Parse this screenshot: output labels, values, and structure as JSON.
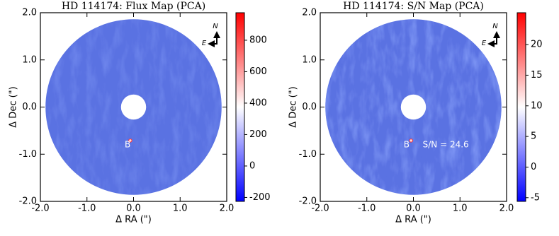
{
  "chart_data": [
    {
      "type": "image",
      "title": "HD 114174: Flux Map (PCA)",
      "xlabel": "Δ RA (\")",
      "ylabel": "Δ Dec (\")",
      "xlim": [
        -2,
        2
      ],
      "ylim": [
        -2,
        2
      ],
      "xticks": [
        {
          "value": -2,
          "label": "-2.0"
        },
        {
          "value": -1,
          "label": "-1.0"
        },
        {
          "value": 0,
          "label": "0.0"
        },
        {
          "value": 1,
          "label": "1.0"
        },
        {
          "value": 2,
          "label": "2.0"
        }
      ],
      "yticks": [
        {
          "value": -2,
          "label": "-2.0"
        },
        {
          "value": -1,
          "label": "-1.0"
        },
        {
          "value": 0,
          "label": "0.0"
        },
        {
          "value": 1,
          "label": "1.0"
        },
        {
          "value": 2,
          "label": "2.0"
        }
      ],
      "colorbar": {
        "clim": [
          -225,
          975
        ],
        "ticks": [
          -200,
          0,
          200,
          400,
          600,
          800
        ]
      },
      "compass": {
        "north": "N",
        "east": "E"
      },
      "annotations": [
        {
          "text": "B",
          "x": -0.19,
          "y": -0.8
        }
      ],
      "companion": {
        "x": -0.07,
        "y": -0.71
      }
    },
    {
      "type": "image",
      "title": "HD 114174: S/N Map (PCA)",
      "xlabel": "Δ RA (\")",
      "ylabel": "Δ Dec (\")",
      "xlim": [
        -2,
        2
      ],
      "ylim": [
        -2,
        2
      ],
      "xticks": [
        {
          "value": -2,
          "label": "-2.0"
        },
        {
          "value": -1,
          "label": "-1.0"
        },
        {
          "value": 0,
          "label": "0.0"
        },
        {
          "value": 1,
          "label": "1.0"
        },
        {
          "value": 2,
          "label": "2.0"
        }
      ],
      "yticks": [
        {
          "value": -2,
          "label": "-2.0"
        },
        {
          "value": -1,
          "label": "-1.0"
        },
        {
          "value": 0,
          "label": "0.0"
        },
        {
          "value": 1,
          "label": "1.0"
        },
        {
          "value": 2,
          "label": "2.0"
        }
      ],
      "colorbar": {
        "clim": [
          -5.6,
          25.2
        ],
        "ticks": [
          -5,
          0,
          5,
          10,
          15,
          20
        ]
      },
      "compass": {
        "north": "N",
        "east": "E"
      },
      "annotations": [
        {
          "text": "B",
          "x": -0.21,
          "y": -0.8
        },
        {
          "text": "S/N = 24.6",
          "x": 0.2,
          "y": -0.8
        }
      ],
      "companion": {
        "x": -0.05,
        "y": -0.71
      }
    }
  ]
}
